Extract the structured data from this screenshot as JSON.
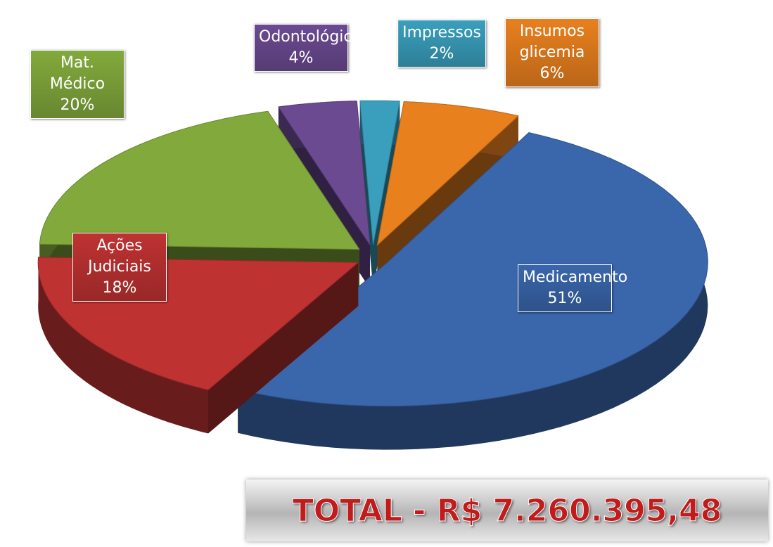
{
  "chart_data": {
    "type": "pie",
    "categories": [
      "Odontológico",
      "Impressos",
      "Insumos glicemia",
      "Medicamento",
      "Ações Judiciais",
      "Mat. Médico"
    ],
    "values": [
      4,
      2,
      6,
      51,
      18,
      20
    ],
    "value_labels": [
      "4%",
      "2%",
      "6%",
      "51%",
      "18%",
      "20%"
    ],
    "colors": [
      "#6b4a92",
      "#3a9fbd",
      "#e8801e",
      "#3a66ab",
      "#bf3232",
      "#82a93c"
    ],
    "annotations": [
      "TOTAL - R$ 7.260.395,48"
    ]
  }
}
